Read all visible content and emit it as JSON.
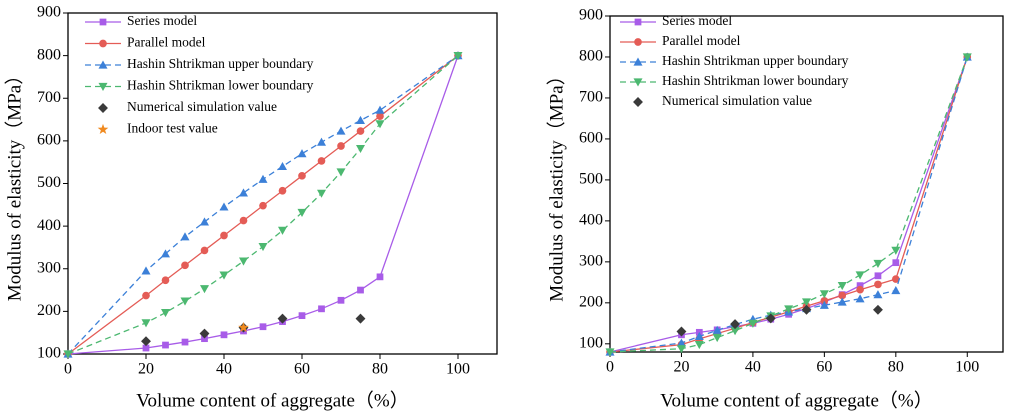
{
  "chart_data": [
    {
      "type": "line",
      "xlabel": "Volume content of aggregate（%）",
      "ylabel": "Modulus of elasticity（MPa）",
      "xlim": [
        0,
        110
      ],
      "xticks": [
        0,
        20,
        40,
        60,
        80,
        100
      ],
      "ylim": [
        100,
        900
      ],
      "yticks": [
        100,
        200,
        300,
        400,
        500,
        600,
        700,
        800,
        900
      ],
      "series": [
        {
          "name": "Series model",
          "color": "#a85ce8",
          "marker": "square",
          "dash": false,
          "line": true,
          "x": [
            0,
            20,
            25,
            30,
            35,
            40,
            45,
            50,
            55,
            60,
            65,
            70,
            75,
            80,
            100
          ],
          "values": [
            100,
            114,
            121,
            128,
            136,
            145,
            154,
            164,
            176,
            190,
            206,
            226,
            250,
            281,
            800
          ]
        },
        {
          "name": "Parallel model",
          "color": "#e45c56",
          "marker": "circle",
          "dash": false,
          "line": true,
          "x": [
            0,
            20,
            25,
            30,
            35,
            40,
            45,
            50,
            55,
            60,
            65,
            70,
            75,
            80,
            100
          ],
          "values": [
            100,
            237,
            273,
            308,
            343,
            378,
            413,
            448,
            483,
            518,
            553,
            588,
            623,
            658,
            800
          ]
        },
        {
          "name": "Hashin Shtrikman upper boundary",
          "color": "#3c80d8",
          "marker": "triangle",
          "dash": true,
          "line": true,
          "x": [
            0,
            20,
            25,
            30,
            35,
            40,
            45,
            50,
            55,
            60,
            65,
            70,
            75,
            80,
            100
          ],
          "values": [
            100,
            295,
            335,
            375,
            410,
            445,
            478,
            510,
            540,
            570,
            597,
            623,
            648,
            672,
            800
          ]
        },
        {
          "name": "Hashin Shtrikman lower boundary",
          "color": "#4cb870",
          "marker": "down-triangle",
          "dash": true,
          "line": true,
          "x": [
            0,
            20,
            25,
            30,
            35,
            40,
            45,
            50,
            55,
            60,
            65,
            70,
            75,
            80,
            100
          ],
          "values": [
            100,
            173,
            197,
            224,
            253,
            285,
            318,
            352,
            390,
            432,
            477,
            527,
            582,
            640,
            800
          ]
        },
        {
          "name": "Numerical simulation value",
          "color": "#3a3a3a",
          "marker": "diamond",
          "dash": false,
          "line": false,
          "x": [
            20,
            35,
            45,
            55,
            75
          ],
          "values": [
            130,
            148,
            162,
            183,
            183
          ]
        },
        {
          "name": "Indoor test value",
          "color": "#f08a20",
          "marker": "star",
          "dash": false,
          "line": false,
          "x": [
            45
          ],
          "values": [
            162
          ]
        }
      ]
    },
    {
      "type": "line",
      "xlabel": "Volume content of aggregate（%）",
      "ylabel": "Modulus of elasticity（MPa）",
      "xlim": [
        0,
        110
      ],
      "xticks": [
        0,
        20,
        40,
        60,
        80,
        100
      ],
      "ylim": [
        80,
        900
      ],
      "yticks": [
        100,
        200,
        300,
        400,
        500,
        600,
        700,
        800,
        900
      ],
      "series": [
        {
          "name": "Series model",
          "color": "#a85ce8",
          "marker": "square",
          "dash": false,
          "line": true,
          "x": [
            0,
            20,
            25,
            30,
            35,
            40,
            45,
            50,
            55,
            60,
            65,
            70,
            75,
            80,
            100
          ],
          "values": [
            80,
            122,
            128,
            134,
            142,
            150,
            160,
            172,
            186,
            202,
            220,
            242,
            266,
            298,
            800
          ]
        },
        {
          "name": "Parallel model",
          "color": "#e45c56",
          "marker": "circle",
          "dash": false,
          "line": true,
          "x": [
            0,
            20,
            25,
            30,
            35,
            40,
            45,
            50,
            55,
            60,
            65,
            70,
            75,
            80,
            100
          ],
          "values": [
            80,
            98,
            112,
            125,
            138,
            152,
            165,
            178,
            192,
            205,
            218,
            232,
            245,
            258,
            800
          ]
        },
        {
          "name": "Hashin Shtrikman upper boundary",
          "color": "#3c80d8",
          "marker": "triangle",
          "dash": true,
          "line": true,
          "x": [
            0,
            20,
            25,
            30,
            35,
            40,
            45,
            50,
            55,
            60,
            65,
            70,
            75,
            80,
            100
          ],
          "values": [
            80,
            102,
            118,
            133,
            147,
            160,
            170,
            178,
            186,
            194,
            202,
            210,
            220,
            230,
            800
          ]
        },
        {
          "name": "Hashin Shtrikman lower boundary",
          "color": "#4cb870",
          "marker": "down-triangle",
          "dash": true,
          "line": true,
          "x": [
            0,
            20,
            25,
            30,
            35,
            40,
            45,
            50,
            55,
            60,
            65,
            70,
            75,
            80,
            100
          ],
          "values": [
            80,
            88,
            98,
            115,
            132,
            150,
            168,
            185,
            202,
            222,
            242,
            268,
            296,
            328,
            800
          ]
        },
        {
          "name": "Numerical simulation value",
          "color": "#3a3a3a",
          "marker": "diamond",
          "dash": false,
          "line": false,
          "x": [
            20,
            35,
            45,
            55,
            75
          ],
          "values": [
            130,
            148,
            162,
            183,
            183
          ]
        }
      ]
    }
  ]
}
